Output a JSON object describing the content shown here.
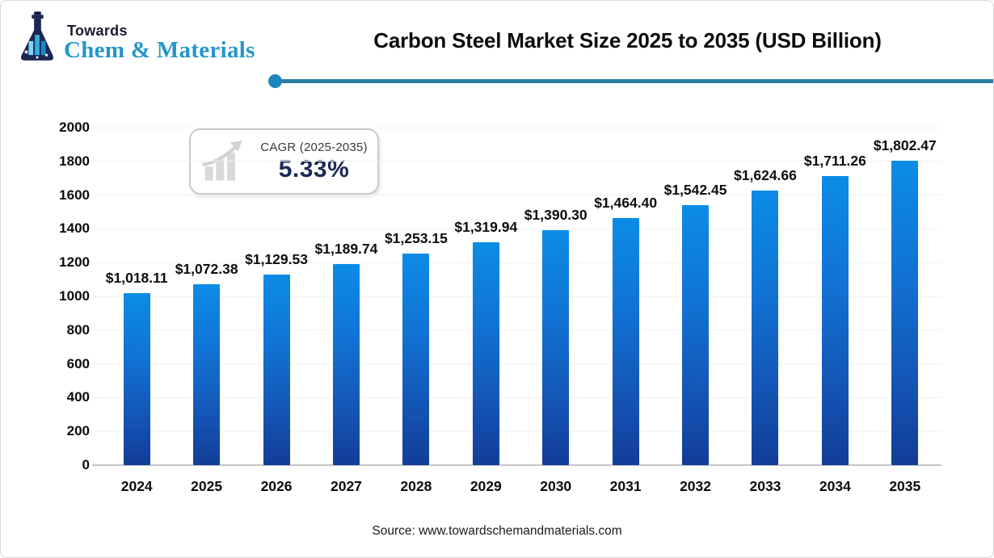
{
  "brand": {
    "towards": "Towards",
    "name": "Chem & Materials"
  },
  "header": {
    "title": "Carbon Steel Market Size 2025 to 2035 (USD Billion)"
  },
  "cagr_badge": {
    "label": "CAGR (2025-2035)",
    "value": "5.33%"
  },
  "chart_data": {
    "type": "bar",
    "title": "Carbon Steel Market Size 2025 to 2035 (USD Billion)",
    "xlabel": "",
    "ylabel": "",
    "categories": [
      "2024",
      "2025",
      "2026",
      "2027",
      "2028",
      "2029",
      "2030",
      "2031",
      "2032",
      "2033",
      "2034",
      "2035"
    ],
    "values": [
      1018.11,
      1072.38,
      1129.53,
      1189.74,
      1253.15,
      1319.94,
      1390.3,
      1464.4,
      1542.45,
      1624.66,
      1711.26,
      1802.47
    ],
    "value_labels": [
      "$1,018.11",
      "$1,072.38",
      "$1,129.53",
      "$1,189.74",
      "$1,253.15",
      "$1,319.94",
      "$1,390.30",
      "$1,464.40",
      "$1,542.45",
      "$1,624.66",
      "$1,711.26",
      "$1,802.47"
    ],
    "ylim": [
      0,
      2000
    ],
    "yticks": [
      0,
      200,
      400,
      600,
      800,
      1000,
      1200,
      1400,
      1600,
      1800,
      2000
    ],
    "grid": true,
    "legend_position": "none",
    "bar_color_top": "#0c8ce6",
    "bar_color_bottom": "#123d99"
  },
  "footer": {
    "source": "Source: www.towardschemandmaterials.com"
  },
  "colors": {
    "accent_rule": "#2b7ea8",
    "accent_dot": "#1e84c0",
    "brand_blue": "#2596c9",
    "brand_dark": "#1c1c30",
    "cagr_value": "#1b2a55"
  }
}
